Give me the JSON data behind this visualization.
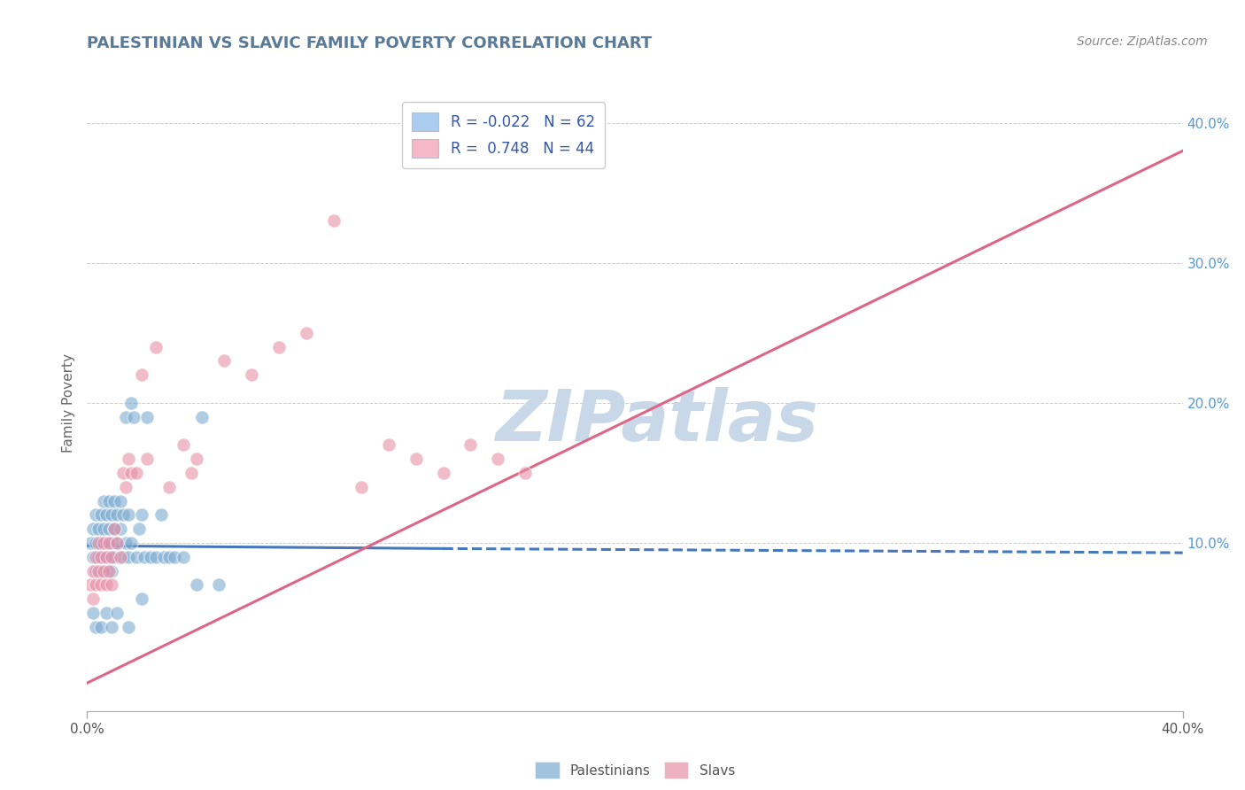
{
  "title": "PALESTINIAN VS SLAVIC FAMILY POVERTY CORRELATION CHART",
  "source_text": "Source: ZipAtlas.com",
  "ylabel": "Family Poverty",
  "watermark": "ZIPatlas",
  "watermark_color": "#c8d8e8",
  "title_color": "#5a7a9a",
  "grid_color": "#cccccc",
  "blue_dot_color": "#7aaad0",
  "pink_dot_color": "#e890a8",
  "blue_line_color": "#4477bb",
  "pink_line_color": "#dd6688",
  "xlim": [
    0.0,
    0.4
  ],
  "ylim": [
    -0.02,
    0.42
  ],
  "legend_labels": [
    "R = -0.022   N = 62",
    "R =  0.748   N = 44"
  ],
  "legend_colors": [
    "#aaccee",
    "#f4b8c8"
  ],
  "bottom_legend_labels": [
    "Palestinians",
    "Slavs"
  ],
  "blue_scatter_x": [
    0.001,
    0.002,
    0.002,
    0.003,
    0.003,
    0.003,
    0.004,
    0.004,
    0.005,
    0.005,
    0.005,
    0.006,
    0.006,
    0.006,
    0.007,
    0.007,
    0.007,
    0.008,
    0.008,
    0.008,
    0.009,
    0.009,
    0.009,
    0.01,
    0.01,
    0.01,
    0.011,
    0.011,
    0.012,
    0.012,
    0.013,
    0.013,
    0.014,
    0.014,
    0.015,
    0.015,
    0.016,
    0.016,
    0.017,
    0.018,
    0.019,
    0.02,
    0.021,
    0.022,
    0.023,
    0.025,
    0.027,
    0.028,
    0.03,
    0.032,
    0.035,
    0.04,
    0.042,
    0.048,
    0.002,
    0.003,
    0.005,
    0.007,
    0.009,
    0.011,
    0.015,
    0.02
  ],
  "blue_scatter_y": [
    0.1,
    0.11,
    0.09,
    0.12,
    0.1,
    0.08,
    0.11,
    0.09,
    0.12,
    0.1,
    0.08,
    0.13,
    0.11,
    0.09,
    0.12,
    0.1,
    0.08,
    0.13,
    0.11,
    0.09,
    0.12,
    0.1,
    0.08,
    0.13,
    0.11,
    0.09,
    0.12,
    0.1,
    0.13,
    0.11,
    0.09,
    0.12,
    0.19,
    0.1,
    0.12,
    0.09,
    0.2,
    0.1,
    0.19,
    0.09,
    0.11,
    0.12,
    0.09,
    0.19,
    0.09,
    0.09,
    0.12,
    0.09,
    0.09,
    0.09,
    0.09,
    0.07,
    0.19,
    0.07,
    0.05,
    0.04,
    0.04,
    0.05,
    0.04,
    0.05,
    0.04,
    0.06
  ],
  "pink_scatter_x": [
    0.001,
    0.002,
    0.002,
    0.003,
    0.003,
    0.004,
    0.004,
    0.005,
    0.005,
    0.006,
    0.006,
    0.007,
    0.007,
    0.008,
    0.008,
    0.009,
    0.009,
    0.01,
    0.011,
    0.012,
    0.013,
    0.014,
    0.015,
    0.016,
    0.018,
    0.02,
    0.022,
    0.025,
    0.03,
    0.035,
    0.038,
    0.04,
    0.05,
    0.06,
    0.07,
    0.08,
    0.09,
    0.1,
    0.11,
    0.12,
    0.13,
    0.14,
    0.15,
    0.16
  ],
  "pink_scatter_y": [
    0.07,
    0.08,
    0.06,
    0.09,
    0.07,
    0.08,
    0.1,
    0.07,
    0.09,
    0.1,
    0.08,
    0.09,
    0.07,
    0.1,
    0.08,
    0.09,
    0.07,
    0.11,
    0.1,
    0.09,
    0.15,
    0.14,
    0.16,
    0.15,
    0.15,
    0.22,
    0.16,
    0.24,
    0.14,
    0.17,
    0.15,
    0.16,
    0.23,
    0.22,
    0.24,
    0.25,
    0.33,
    0.14,
    0.17,
    0.16,
    0.15,
    0.17,
    0.16,
    0.15
  ],
  "blue_line_solid": {
    "x0": 0.0,
    "x1": 0.13,
    "y0": 0.098,
    "y1": 0.096
  },
  "blue_line_dashed": {
    "x0": 0.13,
    "x1": 0.4,
    "y0": 0.096,
    "y1": 0.093
  },
  "pink_line": {
    "x0": 0.0,
    "x1": 0.4,
    "y0": 0.0,
    "y1": 0.38
  }
}
